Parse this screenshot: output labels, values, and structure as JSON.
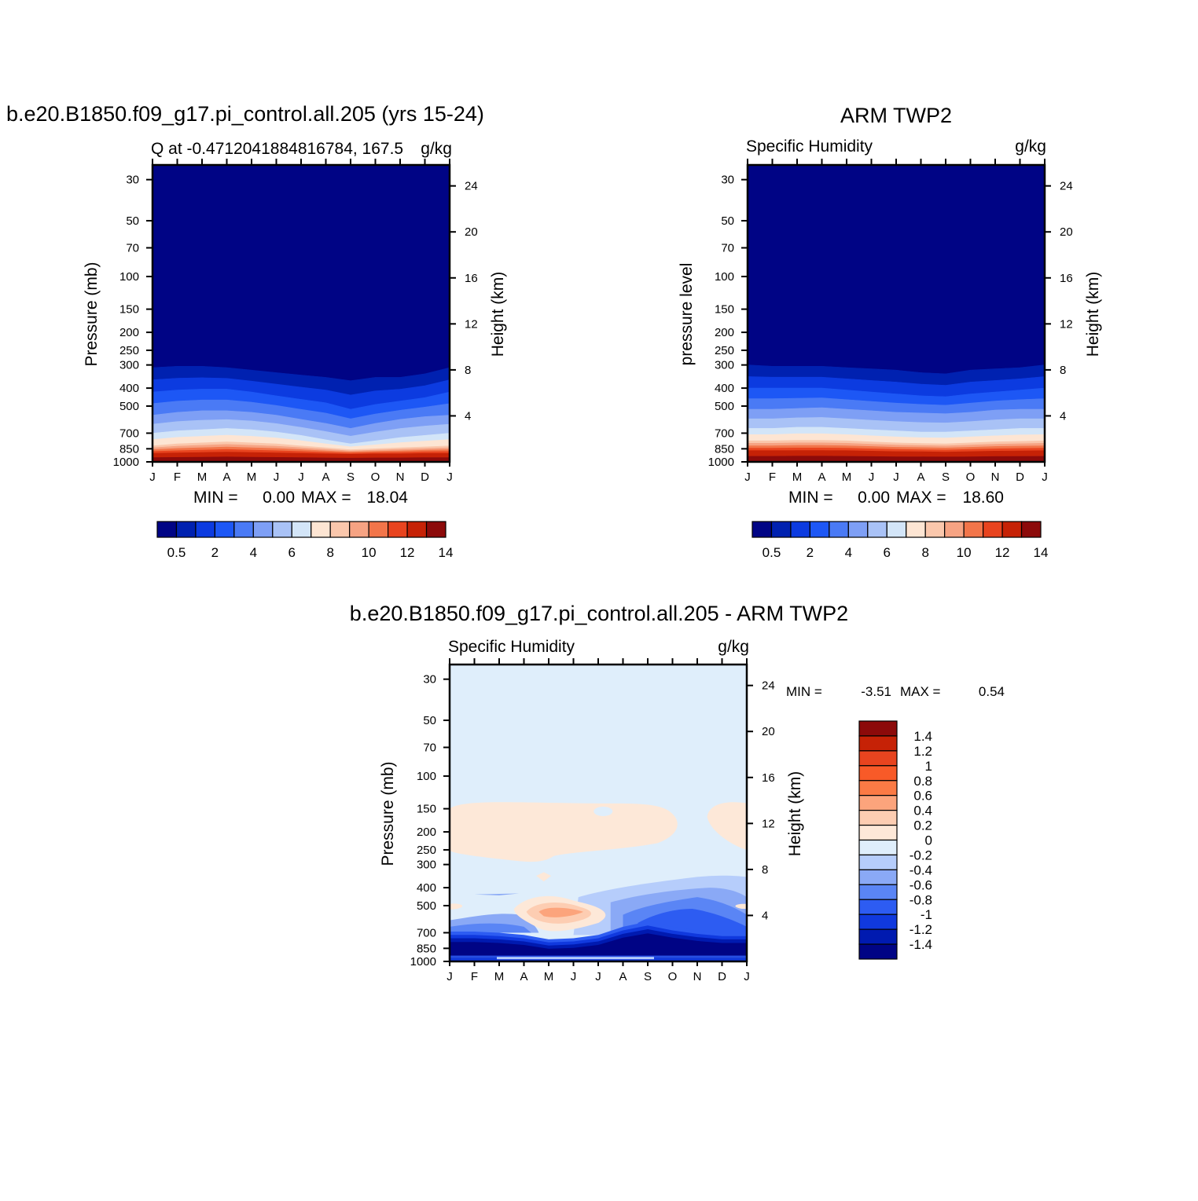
{
  "panel_left": {
    "title": "b.e20.B1850.f09_g17.pi_control.all.205 (yrs 15-24)",
    "subtitle": "Q at -0.4712041884816784, 167.5",
    "units": "g/kg",
    "ylabel_left": "Pressure (mb)",
    "ylabel_right": "Height (km)",
    "stats": {
      "min_label": "MIN =",
      "min": "0.00",
      "max_label": "MAX =",
      "max": "18.04"
    }
  },
  "panel_right": {
    "title": "ARM TWP2",
    "subtitle": "Specific Humidity",
    "units": "g/kg",
    "ylabel_left": "pressure level",
    "ylabel_right": "Height (km)",
    "stats": {
      "min_label": "MIN =",
      "min": "0.00",
      "max_label": "MAX =",
      "max": "18.60"
    }
  },
  "panel_diff": {
    "title": "b.e20.B1850.f09_g17.pi_control.all.205 - ARM TWP2",
    "subtitle": "Specific Humidity",
    "units": "g/kg",
    "ylabel_left": "Pressure (mb)",
    "ylabel_right": "Height (km)",
    "stats": {
      "min_label": "MIN =",
      "min": "-3.51",
      "max_label": "MAX =",
      "max": "0.54"
    }
  },
  "chart_data": [
    {
      "type": "heatmap",
      "panel": "panel_left",
      "x": [
        "J",
        "F",
        "M",
        "A",
        "M",
        "J",
        "J",
        "A",
        "S",
        "O",
        "N",
        "D",
        "J"
      ],
      "y_pressure_ticks": [
        "30",
        "50",
        "70",
        "100",
        "150",
        "200",
        "250",
        "300",
        "400",
        "500",
        "700",
        "850",
        "1000"
      ],
      "y_height_ticks": [
        "24",
        "20",
        "16",
        "12",
        "8",
        "4"
      ],
      "ylim_mb": [
        1000,
        25
      ],
      "level_edges_mb": [
        1000,
        950,
        910,
        880,
        850,
        820,
        790,
        760,
        730,
        700,
        660,
        620,
        580,
        540,
        500,
        450,
        400,
        350,
        300
      ],
      "band_mb_by_month": {
        "note": "pressure where each humidity band boundary lies, per month (J..J)",
        "b_0_5": [
          310,
          305,
          305,
          310,
          320,
          330,
          340,
          350,
          365,
          350,
          350,
          335,
          310
        ],
        "b_2": [
          420,
          410,
          405,
          405,
          420,
          440,
          460,
          480,
          520,
          490,
          470,
          450,
          420
        ],
        "b_4": [
          560,
          540,
          530,
          530,
          540,
          560,
          590,
          620,
          660,
          620,
          590,
          570,
          560
        ],
        "b_6": [
          700,
          680,
          670,
          660,
          670,
          690,
          720,
          760,
          800,
          770,
          740,
          720,
          700
        ],
        "b_8": [
          820,
          800,
          790,
          780,
          790,
          800,
          820,
          840,
          860,
          850,
          840,
          830,
          820
        ],
        "b_12": [
          900,
          895,
          890,
          885,
          890,
          895,
          900,
          905,
          910,
          905,
          905,
          900,
          900
        ]
      }
    },
    {
      "type": "heatmap",
      "panel": "panel_right",
      "x": [
        "J",
        "F",
        "M",
        "A",
        "M",
        "J",
        "J",
        "A",
        "S",
        "O",
        "N",
        "D",
        "J"
      ],
      "y_pressure_ticks": [
        "30",
        "50",
        "70",
        "100",
        "150",
        "200",
        "250",
        "300",
        "400",
        "500",
        "700",
        "850",
        "1000"
      ],
      "y_height_ticks": [
        "24",
        "20",
        "16",
        "12",
        "8",
        "4"
      ],
      "ylim_mb": [
        1000,
        25
      ],
      "band_mb_by_month": {
        "b_0_5": [
          300,
          305,
          305,
          305,
          310,
          315,
          320,
          330,
          335,
          320,
          315,
          310,
          300
        ],
        "b_2": [
          400,
          400,
          400,
          400,
          410,
          420,
          430,
          440,
          445,
          430,
          420,
          410,
          400
        ],
        "b_4": [
          520,
          520,
          515,
          510,
          520,
          530,
          540,
          545,
          550,
          540,
          525,
          520,
          520
        ],
        "b_6": [
          660,
          660,
          650,
          650,
          660,
          670,
          680,
          690,
          690,
          680,
          670,
          660,
          660
        ],
        "b_8": [
          770,
          770,
          765,
          765,
          770,
          780,
          790,
          795,
          800,
          790,
          780,
          775,
          770
        ],
        "b_12": [
          870,
          870,
          868,
          868,
          870,
          875,
          880,
          882,
          885,
          880,
          875,
          872,
          870
        ]
      }
    },
    {
      "type": "heatmap",
      "panel": "panel_diff",
      "x": [
        "J",
        "F",
        "M",
        "A",
        "M",
        "J",
        "J",
        "A",
        "S",
        "O",
        "N",
        "D",
        "J"
      ],
      "y_pressure_ticks": [
        "30",
        "50",
        "70",
        "100",
        "150",
        "200",
        "250",
        "300",
        "400",
        "500",
        "700",
        "850",
        "1000"
      ],
      "y_height_ticks": [
        "24",
        "20",
        "16",
        "12",
        "8",
        "4"
      ],
      "ylim_mb": [
        1000,
        25
      ],
      "background_level": "-0.2 to 0",
      "features": [
        {
          "name": "positive upper-troposphere region",
          "level": "0 to 0.2",
          "mb_range": [
            140,
            330
          ],
          "months": "Jan–Oct, Dec"
        },
        {
          "name": "positive mid-level maximum",
          "level": "0.4 to 0.6",
          "mb_range": [
            480,
            620
          ],
          "months": "Apr–Jun"
        },
        {
          "name": "negative boundary-layer minimum",
          "level": "< -1.4",
          "mb_range": [
            720,
            950
          ],
          "months": "all, deepest in Sep"
        }
      ]
    }
  ],
  "colorbar_seq": {
    "labels": [
      "0.5",
      "2",
      "4",
      "6",
      "8",
      "10",
      "12",
      "14"
    ],
    "colors": [
      "#000485",
      "#0021b0",
      "#0c3be0",
      "#1d57f5",
      "#4a7af5",
      "#7e9ff5",
      "#a9c2f6",
      "#d3e5f8",
      "#fde5d3",
      "#fac7ac",
      "#f6a383",
      "#f2754a",
      "#e8441f",
      "#c62206",
      "#8c0a0a"
    ]
  },
  "colorbar_diff": {
    "labels": [
      "1.4",
      "1.2",
      "1",
      "0.8",
      "0.6",
      "0.4",
      "0.2",
      "0",
      "-0.2",
      "-0.4",
      "-0.6",
      "-0.8",
      "-1",
      "-1.2",
      "-1.4"
    ],
    "colors": [
      "#8c0a0a",
      "#c62206",
      "#e8441f",
      "#f85a28",
      "#fb7a45",
      "#fca47c",
      "#fdcdb2",
      "#fde8d8",
      "#dfeefb",
      "#b6cdfb",
      "#8aa9f6",
      "#5a85f5",
      "#2d5cf2",
      "#1039de",
      "#001ab0",
      "#000485"
    ]
  }
}
